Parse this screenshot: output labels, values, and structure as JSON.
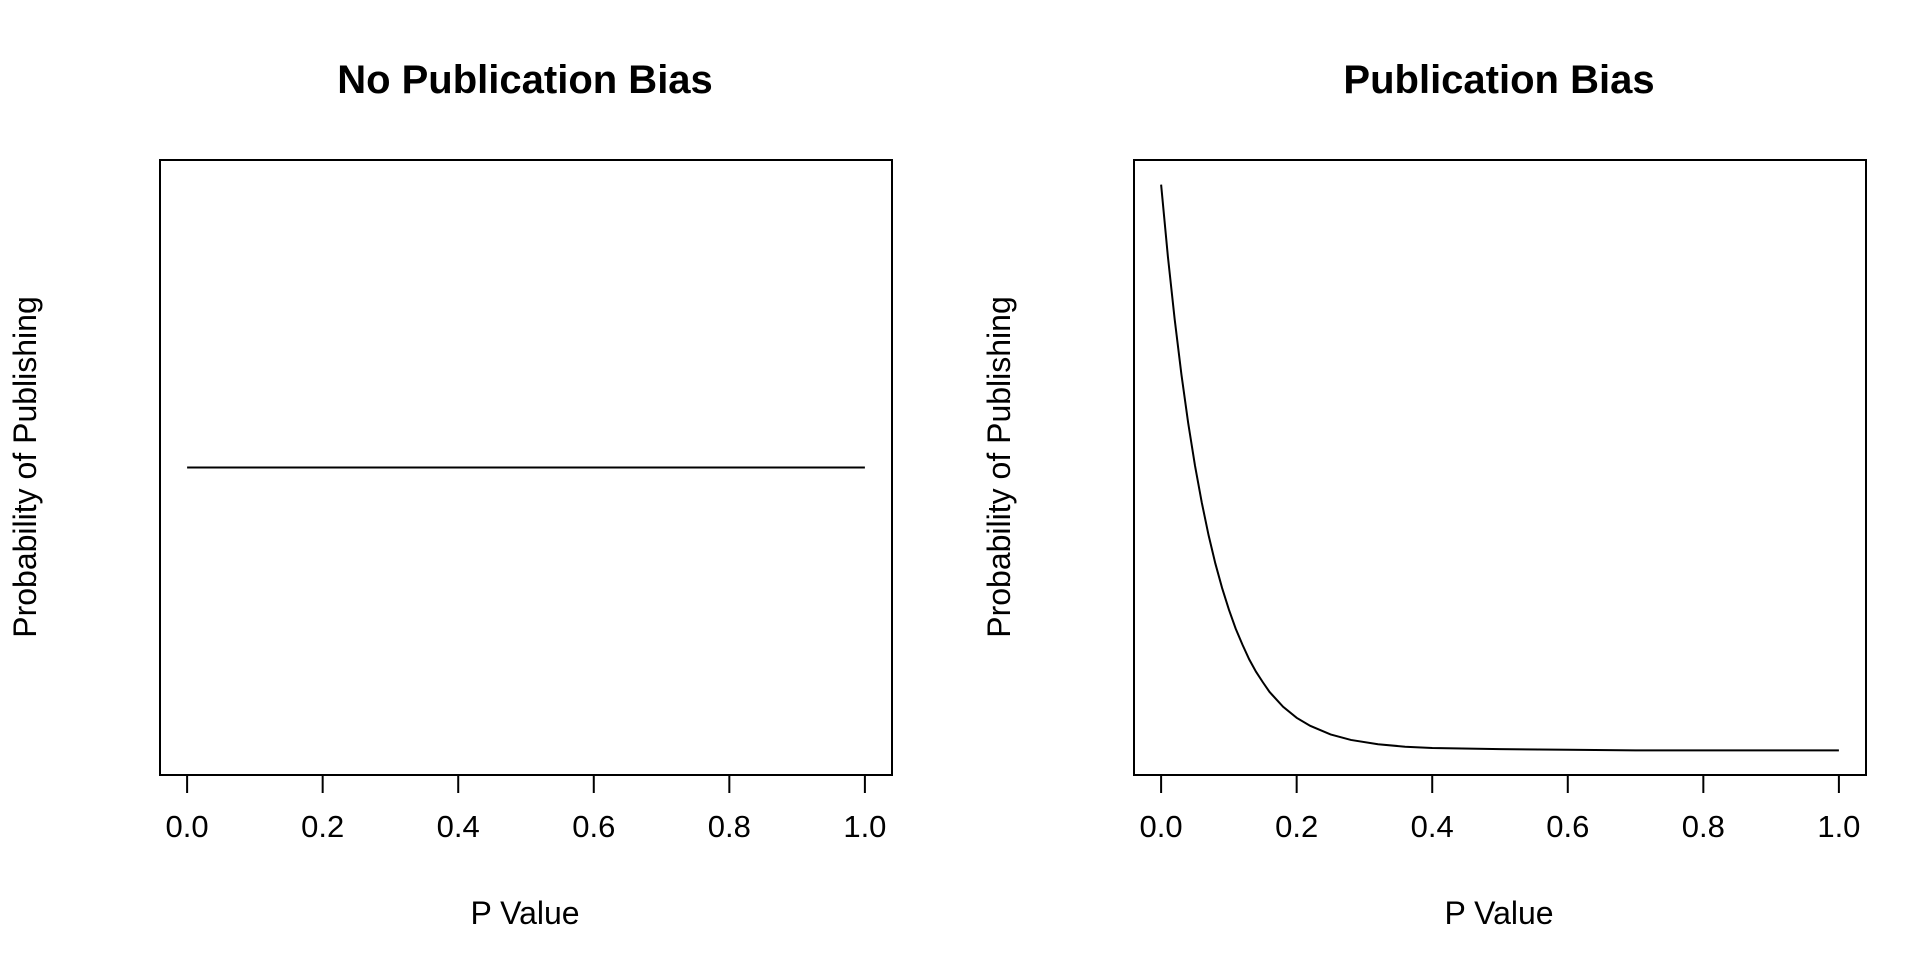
{
  "chart_data": [
    {
      "type": "line",
      "title": "No Publication Bias",
      "xlabel": "P Value",
      "ylabel": "Probability of Publishing",
      "xlim": [
        -0.04,
        1.04
      ],
      "ylim": [
        0.0,
        1.0
      ],
      "x_ticks": [
        0.0,
        0.2,
        0.4,
        0.6,
        0.8,
        1.0
      ],
      "x_tick_labels": [
        "0.0",
        "0.2",
        "0.4",
        "0.6",
        "0.8",
        "1.0"
      ],
      "y_ticks_shown": false,
      "grid": false,
      "series": [
        {
          "x": [
            0.0,
            1.0
          ],
          "y": [
            0.5,
            0.5
          ]
        }
      ]
    },
    {
      "type": "line",
      "title": "Publication Bias",
      "xlabel": "P Value",
      "ylabel": "Probability of Publishing",
      "xlim": [
        -0.04,
        1.04
      ],
      "ylim": [
        0.0,
        1.0
      ],
      "x_ticks": [
        0.0,
        0.2,
        0.4,
        0.6,
        0.8,
        1.0
      ],
      "x_tick_labels": [
        "0.0",
        "0.2",
        "0.4",
        "0.6",
        "0.8",
        "1.0"
      ],
      "y_ticks_shown": false,
      "grid": false,
      "series": [
        {
          "x": [
            0.0,
            0.01,
            0.02,
            0.03,
            0.04,
            0.05,
            0.06,
            0.07,
            0.08,
            0.09,
            0.1,
            0.11,
            0.12,
            0.13,
            0.14,
            0.15,
            0.16,
            0.18,
            0.2,
            0.22,
            0.25,
            0.28,
            0.32,
            0.36,
            0.4,
            0.5,
            0.6,
            0.7,
            0.8,
            0.9,
            1.0
          ],
          "y": [
            0.96,
            0.843,
            0.741,
            0.651,
            0.572,
            0.503,
            0.443,
            0.39,
            0.344,
            0.304,
            0.269,
            0.238,
            0.212,
            0.188,
            0.168,
            0.151,
            0.135,
            0.111,
            0.093,
            0.08,
            0.066,
            0.057,
            0.05,
            0.046,
            0.044,
            0.042,
            0.041,
            0.04,
            0.04,
            0.04,
            0.04
          ]
        }
      ]
    }
  ]
}
